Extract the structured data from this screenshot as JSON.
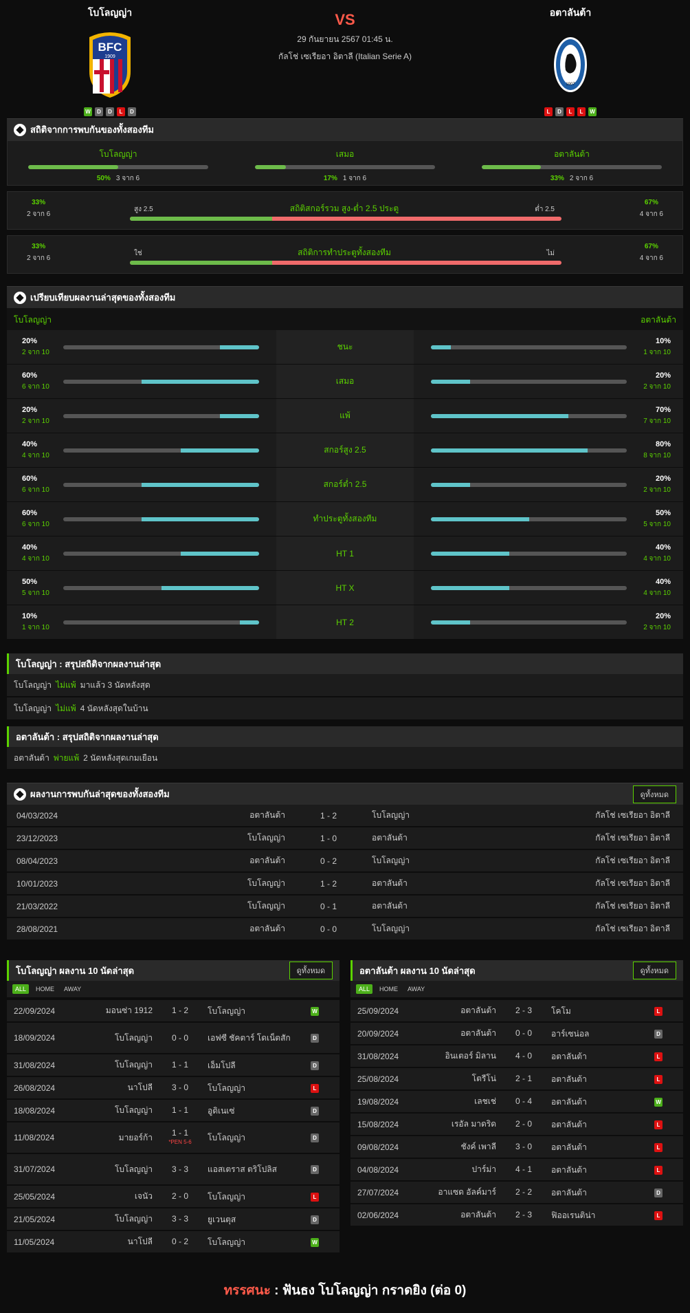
{
  "header": {
    "home": "โบโลญญ่า",
    "away": "อตาลันต้า",
    "vs": "VS",
    "date": "29 กันยายน 2567 01:45 น.",
    "league": "กัลโช่ เซเรียอา อิตาลี (Italian Serie A)",
    "home_form": [
      "W",
      "D",
      "D",
      "L",
      "D"
    ],
    "away_form": [
      "L",
      "D",
      "L",
      "L",
      "W"
    ]
  },
  "h2h": {
    "title": "สถิติจากการพบกันของทั้งสองทีม",
    "cols": [
      {
        "label": "โบโลญญ่า",
        "pct": "50%",
        "count": "3 จาก 6",
        "fill": 0.5
      },
      {
        "label": "เสมอ",
        "pct": "17%",
        "count": "1 จาก 6",
        "fill": 0.17
      },
      {
        "label": "อตาลันต้า",
        "pct": "33%",
        "count": "2 จาก 6",
        "fill": 0.33
      }
    ],
    "ou": {
      "title": "สถิติสกอร์รวม สูง-ต่ำ 2.5 ประตู",
      "left_pct": "33%",
      "left_count": "2 จาก 6",
      "right_pct": "67%",
      "right_count": "4 จาก 6",
      "left_label": "สูง 2.5",
      "right_label": "ต่ำ 2.5",
      "fill": 0.33
    },
    "btts": {
      "title": "สถิติการทำประตูทั้งสองทีม",
      "left_pct": "33%",
      "left_count": "2 จาก 6",
      "right_pct": "67%",
      "right_count": "4 จาก 6",
      "left_label": "ใช่",
      "right_label": "ไม่",
      "fill": 0.33
    }
  },
  "compare": {
    "title": "เปรียบเทียบผลงานล่าสุดของทั้งสองทีม",
    "home": "โบโลญญ่า",
    "away": "อตาลันต้า",
    "rows": [
      {
        "label": "ชนะ",
        "hp": "20%",
        "hc": "2 จาก 10",
        "hf": 0.2,
        "ap": "10%",
        "ac": "1 จาก 10",
        "af": 0.1
      },
      {
        "label": "เสมอ",
        "hp": "60%",
        "hc": "6 จาก 10",
        "hf": 0.6,
        "ap": "20%",
        "ac": "2 จาก 10",
        "af": 0.2
      },
      {
        "label": "แพ้",
        "hp": "20%",
        "hc": "2 จาก 10",
        "hf": 0.2,
        "ap": "70%",
        "ac": "7 จาก 10",
        "af": 0.7
      },
      {
        "label": "สกอร์สูง 2.5",
        "hp": "40%",
        "hc": "4 จาก 10",
        "hf": 0.4,
        "ap": "80%",
        "ac": "8 จาก 10",
        "af": 0.8
      },
      {
        "label": "สกอร์ต่ำ 2.5",
        "hp": "60%",
        "hc": "6 จาก 10",
        "hf": 0.6,
        "ap": "20%",
        "ac": "2 จาก 10",
        "af": 0.2
      },
      {
        "label": "ทำประตูทั้งสองทีม",
        "hp": "60%",
        "hc": "6 จาก 10",
        "hf": 0.6,
        "ap": "50%",
        "ac": "5 จาก 10",
        "af": 0.5
      },
      {
        "label": "HT 1",
        "hp": "40%",
        "hc": "4 จาก 10",
        "hf": 0.4,
        "ap": "40%",
        "ac": "4 จาก 10",
        "af": 0.4
      },
      {
        "label": "HT X",
        "hp": "50%",
        "hc": "5 จาก 10",
        "hf": 0.5,
        "ap": "40%",
        "ac": "4 จาก 10",
        "af": 0.4
      },
      {
        "label": "HT 2",
        "hp": "10%",
        "hc": "1 จาก 10",
        "hf": 0.1,
        "ap": "20%",
        "ac": "2 จาก 10",
        "af": 0.2
      }
    ]
  },
  "summary_home": {
    "title": "โบโลญญ่า : สรุปสถิติจากผลงานล่าสุด",
    "rows": [
      {
        "team": "โบโลญญ่า",
        "hl": "ไม่แพ้",
        "rest": "มาแล้ว 3 นัดหลังสุด"
      },
      {
        "team": "โบโลญญ่า",
        "hl": "ไม่แพ้",
        "rest": "4  นัดหลังสุดในบ้าน"
      }
    ]
  },
  "summary_away": {
    "title": "อตาลันต้า : สรุปสถิติจากผลงานล่าสุด",
    "rows": [
      {
        "team": "อตาลันต้า",
        "hl": "พ่ายแพ้",
        "rest": "2  นัดหลังสุดเกมเยือน"
      }
    ]
  },
  "recent": {
    "title": "ผลงานการพบกันล่าสุดของทั้งสองทีม",
    "button": "ดูทั้งหมด",
    "rows": [
      {
        "date": "04/03/2024",
        "home": "อตาลันต้า",
        "score": "1 - 2",
        "away": "โบโลญญ่า",
        "league": "กัลโช่ เซเรียอา อิตาลี"
      },
      {
        "date": "23/12/2023",
        "home": "โบโลญญ่า",
        "score": "1 - 0",
        "away": "อตาลันต้า",
        "league": "กัลโช่ เซเรียอา อิตาลี"
      },
      {
        "date": "08/04/2023",
        "home": "อตาลันต้า",
        "score": "0 - 2",
        "away": "โบโลญญ่า",
        "league": "กัลโช่ เซเรียอา อิตาลี"
      },
      {
        "date": "10/01/2023",
        "home": "โบโลญญ่า",
        "score": "1 - 2",
        "away": "อตาลันต้า",
        "league": "กัลโช่ เซเรียอา อิตาลี"
      },
      {
        "date": "21/03/2022",
        "home": "โบโลญญ่า",
        "score": "0 - 1",
        "away": "อตาลันต้า",
        "league": "กัลโช่ เซเรียอา อิตาลี"
      },
      {
        "date": "28/08/2021",
        "home": "อตาลันต้า",
        "score": "0 - 0",
        "away": "โบโลญญ่า",
        "league": "กัลโช่ เซเรียอา อิตาลี"
      }
    ]
  },
  "home_last": {
    "title": "โบโลญญ่า ผลงาน 10 นัดล่าสุด",
    "button": "ดูทั้งหมด",
    "tabs": [
      "ALL",
      "HOME",
      "AWAY"
    ],
    "rows": [
      {
        "date": "22/09/2024",
        "home": "มอนซ่า 1912",
        "score": "1 - 2",
        "away": "โบโลญญ่า",
        "res": "W"
      },
      {
        "date": "18/09/2024",
        "home": "โบโลญญ่า",
        "score": "0 - 0",
        "away": "เอฟซี ชัคตาร์ โดเน็ตสัก",
        "res": "D"
      },
      {
        "date": "31/08/2024",
        "home": "โบโลญญ่า",
        "score": "1 - 1",
        "away": "เอ็มโปลี",
        "res": "D"
      },
      {
        "date": "26/08/2024",
        "home": "นาโปลี",
        "score": "3 - 0",
        "away": "โบโลญญ่า",
        "res": "L"
      },
      {
        "date": "18/08/2024",
        "home": "โบโลญญ่า",
        "score": "1 - 1",
        "away": "อูดิเนเซ่",
        "res": "D"
      },
      {
        "date": "11/08/2024",
        "home": "มายอร์ก้า",
        "score": "1 - 1",
        "pen": "*PEN 5-6",
        "away": "โบโลญญ่า",
        "res": "D"
      },
      {
        "date": "31/07/2024",
        "home": "โบโลญญ่า",
        "score": "3 - 3",
        "away": "แอสเตราส ตริโปลิส",
        "res": "D"
      },
      {
        "date": "25/05/2024",
        "home": "เจนัว",
        "score": "2 - 0",
        "away": "โบโลญญ่า",
        "res": "L"
      },
      {
        "date": "21/05/2024",
        "home": "โบโลญญ่า",
        "score": "3 - 3",
        "away": "ยูเวนตุส",
        "res": "D"
      },
      {
        "date": "11/05/2024",
        "home": "นาโปลี",
        "score": "0 - 2",
        "away": "โบโลญญ่า",
        "res": "W"
      }
    ]
  },
  "away_last": {
    "title": "อตาลันต้า ผลงาน 10 นัดล่าสุด",
    "button": "ดูทั้งหมด",
    "tabs": [
      "ALL",
      "HOME",
      "AWAY"
    ],
    "rows": [
      {
        "date": "25/09/2024",
        "home": "อตาลันต้า",
        "score": "2 - 3",
        "away": "โคโม",
        "res": "L"
      },
      {
        "date": "20/09/2024",
        "home": "อตาลันต้า",
        "score": "0 - 0",
        "away": "อาร์เซน่อล",
        "res": "D"
      },
      {
        "date": "31/08/2024",
        "home": "อินเตอร์ มิลาน",
        "score": "4 - 0",
        "away": "อตาลันต้า",
        "res": "L"
      },
      {
        "date": "25/08/2024",
        "home": "โตรีโน่",
        "score": "2 - 1",
        "away": "อตาลันต้า",
        "res": "L"
      },
      {
        "date": "19/08/2024",
        "home": "เลชเช่",
        "score": "0 - 4",
        "away": "อตาลันต้า",
        "res": "W"
      },
      {
        "date": "15/08/2024",
        "home": "เรอัล มาดริด",
        "score": "2 - 0",
        "away": "อตาลันต้า",
        "res": "L"
      },
      {
        "date": "09/08/2024",
        "home": "ชังค์ เพาลี",
        "score": "3 - 0",
        "away": "อตาลันต้า",
        "res": "L"
      },
      {
        "date": "04/08/2024",
        "home": "ปาร์ม่า",
        "score": "4 - 1",
        "away": "อตาลันต้า",
        "res": "L"
      },
      {
        "date": "27/07/2024",
        "home": "อาแซด อัลค์มาร์",
        "score": "2 - 2",
        "away": "อตาลันต้า",
        "res": "D"
      },
      {
        "date": "02/06/2024",
        "home": "อตาลันต้า",
        "score": "2 - 3",
        "away": "ฟิออเรนติน่า",
        "res": "L"
      }
    ]
  },
  "verdict": {
    "label": "ทรรศนะ",
    "sep": ":",
    "text": "ฟันธง โบโลญญ่า กราดยิง (ต่อ 0)"
  },
  "colors": {
    "accent": "#5cd300",
    "vs": "#ff5a4a",
    "win": "#4caf1a",
    "lose": "#dd1111",
    "draw": "#666666",
    "bar_green": "#6dbb4a",
    "bar_red": "#f06b6b",
    "bar_cyan": "#5fc4c9"
  }
}
